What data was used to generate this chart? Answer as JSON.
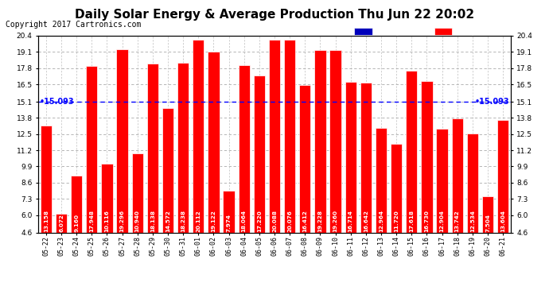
{
  "title": "Daily Solar Energy & Average Production Thu Jun 22 20:02",
  "copyright": "Copyright 2017 Cartronics.com",
  "average_label": "15.093",
  "average_value": 15.093,
  "categories": [
    "05-22",
    "05-23",
    "05-24",
    "05-25",
    "05-26",
    "05-27",
    "05-28",
    "05-29",
    "05-30",
    "05-31",
    "06-01",
    "06-02",
    "06-03",
    "06-04",
    "06-05",
    "06-06",
    "06-07",
    "06-08",
    "06-09",
    "06-10",
    "06-11",
    "06-12",
    "06-13",
    "06-14",
    "06-15",
    "06-16",
    "06-17",
    "06-18",
    "06-19",
    "06-20",
    "06-21"
  ],
  "values": [
    13.158,
    6.072,
    9.16,
    17.948,
    10.116,
    19.296,
    10.94,
    18.138,
    14.572,
    18.238,
    20.112,
    19.122,
    7.974,
    18.064,
    17.22,
    20.088,
    20.076,
    16.412,
    19.228,
    19.26,
    16.714,
    16.642,
    12.964,
    11.72,
    17.618,
    16.73,
    12.904,
    13.742,
    12.534,
    7.504,
    13.604
  ],
  "bar_color": "#ff0000",
  "bar_edge_color": "#cc0000",
  "average_line_color": "#0000ff",
  "background_color": "#ffffff",
  "plot_bg_color": "#ffffff",
  "grid_color": "#aaaaaa",
  "ylim": [
    4.6,
    20.4
  ],
  "ymin": 4.6,
  "yticks": [
    4.6,
    6.0,
    7.3,
    8.6,
    9.9,
    11.2,
    12.5,
    13.8,
    15.1,
    16.5,
    17.8,
    19.1,
    20.4
  ],
  "legend_avg_color": "#0000bb",
  "legend_daily_color": "#ff0000",
  "title_fontsize": 11,
  "copyright_fontsize": 7,
  "value_fontsize": 5.2,
  "tick_fontsize": 6,
  "ytick_fontsize": 6.5
}
